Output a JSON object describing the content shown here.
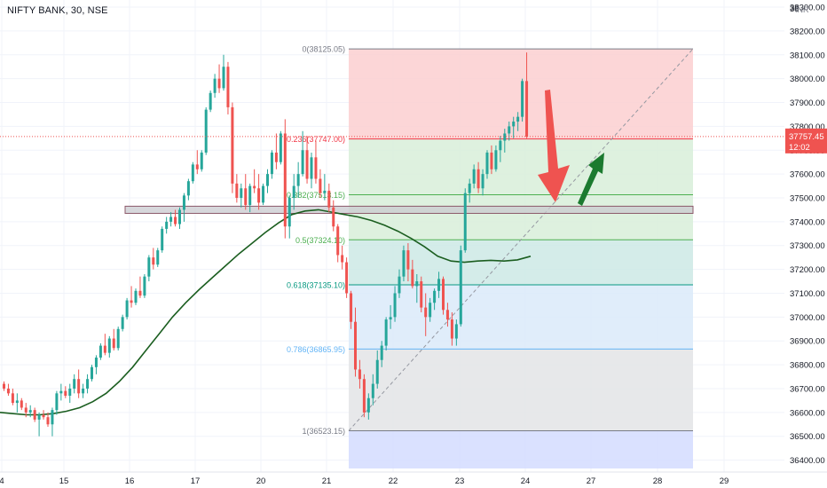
{
  "header": {
    "symbol_label": "NIFTY BANK, 30, NSE",
    "currency": "INR"
  },
  "chart_data": {
    "type": "candlestick",
    "title": "NIFTY BANK, 30, NSE",
    "x_ticks": [
      "4",
      "15",
      "16",
      "17",
      "20",
      "21",
      "22",
      "23",
      "24",
      "27",
      "28",
      "29"
    ],
    "y_ticks": [
      "36400.00",
      "36500.00",
      "36600.00",
      "36700.00",
      "36800.00",
      "36900.00",
      "37000.00",
      "37100.00",
      "37200.00",
      "37300.00",
      "37400.00",
      "37500.00",
      "37600.00",
      "37700.00",
      "37800.00",
      "37900.00",
      "38000.00",
      "38100.00",
      "38200.00",
      "38300.00"
    ],
    "y_top_cut_label": "38",
    "ylim": [
      36350,
      38330
    ],
    "last_price": {
      "value": 37757.45,
      "label": "37757.45",
      "countdown": "12:02",
      "color": "#ef5350"
    },
    "colors": {
      "up": "#26a69a",
      "down": "#ef5350",
      "ma": "#1b5e20",
      "arrow_down": "#ef5350",
      "arrow_up": "#1b7a2f"
    },
    "fibonacci": [
      {
        "level": "0",
        "price": 38125.05,
        "label": "0(38125.05)",
        "color": "#787b86",
        "fill": "#fccfd0"
      },
      {
        "level": "0.236",
        "price": 37747.0,
        "label": "0.236(37747.00)",
        "color": "#f23645",
        "fill": "#d8eed9"
      },
      {
        "level": "0.382",
        "price": 37513.15,
        "label": "0.382(37513.15)",
        "color": "#4caf50",
        "fill": "#d8eed9"
      },
      {
        "level": "0.5",
        "price": 37324.1,
        "label": "0.5(37324.10)",
        "color": "#4caf50",
        "fill": "#cce9e5"
      },
      {
        "level": "0.618",
        "price": 37135.1,
        "label": "0.618(37135.10)",
        "color": "#089981",
        "fill": "#dbeaf9"
      },
      {
        "level": "0.786",
        "price": 36865.95,
        "label": "0.786(36865.95)",
        "color": "#64b5f6",
        "fill": "#e3e4e6"
      },
      {
        "level": "1",
        "price": 36523.15,
        "label": "1(36523.15)",
        "color": "#787b86",
        "fill": "#d3dcff"
      }
    ],
    "zone": {
      "low": 37435,
      "high": 37465
    },
    "candles": [
      [
        36720,
        36730,
        36690,
        36700
      ],
      [
        36700,
        36720,
        36670,
        36680
      ],
      [
        36680,
        36700,
        36630,
        36640
      ],
      [
        36640,
        36680,
        36600,
        36650
      ],
      [
        36650,
        36660,
        36610,
        36620
      ],
      [
        36620,
        36640,
        36580,
        36600
      ],
      [
        36600,
        36630,
        36580,
        36610
      ],
      [
        36610,
        36620,
        36560,
        36570
      ],
      [
        36570,
        36600,
        36500,
        36590
      ],
      [
        36590,
        36610,
        36570,
        36580
      ],
      [
        36580,
        36600,
        36540,
        36550
      ],
      [
        36550,
        36620,
        36500,
        36610
      ],
      [
        36610,
        36690,
        36590,
        36680
      ],
      [
        36680,
        36720,
        36650,
        36690
      ],
      [
        36690,
        36710,
        36660,
        36670
      ],
      [
        36670,
        36720,
        36640,
        36700
      ],
      [
        36700,
        36760,
        36680,
        36740
      ],
      [
        36740,
        36780,
        36660,
        36680
      ],
      [
        36680,
        36720,
        36660,
        36700
      ],
      [
        36700,
        36760,
        36680,
        36740
      ],
      [
        36740,
        36800,
        36730,
        36790
      ],
      [
        36790,
        36840,
        36760,
        36830
      ],
      [
        36830,
        36890,
        36820,
        36880
      ],
      [
        36880,
        36930,
        36840,
        36850
      ],
      [
        36850,
        36920,
        36830,
        36910
      ],
      [
        36910,
        36950,
        36860,
        36870
      ],
      [
        36870,
        36960,
        36860,
        36950
      ],
      [
        36950,
        37010,
        36940,
        37000
      ],
      [
        37000,
        37080,
        36990,
        37070
      ],
      [
        37070,
        37130,
        37040,
        37060
      ],
      [
        37060,
        37120,
        37050,
        37110
      ],
      [
        37110,
        37170,
        37080,
        37090
      ],
      [
        37090,
        37180,
        37080,
        37170
      ],
      [
        37170,
        37260,
        37150,
        37250
      ],
      [
        37250,
        37290,
        37200,
        37220
      ],
      [
        37220,
        37290,
        37210,
        37280
      ],
      [
        37280,
        37380,
        37270,
        37370
      ],
      [
        37370,
        37420,
        37350,
        37400
      ],
      [
        37400,
        37440,
        37380,
        37420
      ],
      [
        37420,
        37450,
        37380,
        37390
      ],
      [
        37390,
        37460,
        37370,
        37450
      ],
      [
        37450,
        37520,
        37400,
        37510
      ],
      [
        37510,
        37580,
        37490,
        37570
      ],
      [
        37570,
        37650,
        37560,
        37640
      ],
      [
        37640,
        37700,
        37600,
        37620
      ],
      [
        37620,
        37700,
        37610,
        37690
      ],
      [
        37690,
        37880,
        37680,
        37870
      ],
      [
        37870,
        37950,
        37860,
        37940
      ],
      [
        37940,
        38020,
        37920,
        38000
      ],
      [
        38000,
        38060,
        37940,
        37960
      ],
      [
        37960,
        38100,
        37950,
        38050
      ],
      [
        38050,
        38070,
        37850,
        37880
      ],
      [
        37880,
        37900,
        37520,
        37560
      ],
      [
        37560,
        37600,
        37480,
        37500
      ],
      [
        37500,
        37560,
        37460,
        37540
      ],
      [
        37540,
        37600,
        37450,
        37470
      ],
      [
        37470,
        37560,
        37440,
        37550
      ],
      [
        37550,
        37620,
        37520,
        37540
      ],
      [
        37540,
        37600,
        37450,
        37480
      ],
      [
        37480,
        37560,
        37470,
        37550
      ],
      [
        37550,
        37620,
        37520,
        37600
      ],
      [
        37600,
        37700,
        37580,
        37690
      ],
      [
        37690,
        37770,
        37620,
        37650
      ],
      [
        37650,
        37780,
        37640,
        37770
      ],
      [
        37770,
        37830,
        37330,
        37380
      ],
      [
        37380,
        37510,
        37330,
        37500
      ],
      [
        37500,
        37600,
        37450,
        37550
      ],
      [
        37550,
        37650,
        37500,
        37600
      ],
      [
        37600,
        37780,
        37590,
        37700
      ],
      [
        37700,
        37760,
        37560,
        37580
      ],
      [
        37580,
        37690,
        37540,
        37670
      ],
      [
        37670,
        37740,
        37560,
        37580
      ],
      [
        37580,
        37620,
        37500,
        37520
      ],
      [
        37520,
        37600,
        37490,
        37530
      ],
      [
        37530,
        37560,
        37440,
        37460
      ],
      [
        37460,
        37490,
        37360,
        37380
      ],
      [
        37380,
        37390,
        37230,
        37260
      ],
      [
        37260,
        37300,
        37200,
        37230
      ],
      [
        37230,
        37250,
        37080,
        37100
      ],
      [
        37100,
        37110,
        36950,
        36980
      ],
      [
        36980,
        37040,
        36750,
        36780
      ],
      [
        36780,
        36820,
        36700,
        36740
      ],
      [
        36740,
        36760,
        36580,
        36600
      ],
      [
        36600,
        36680,
        36570,
        36660
      ],
      [
        36660,
        36760,
        36630,
        36720
      ],
      [
        36720,
        36860,
        36700,
        36820
      ],
      [
        36820,
        36900,
        36790,
        36880
      ],
      [
        36880,
        37000,
        36860,
        36990
      ],
      [
        36990,
        37050,
        36950,
        37000
      ],
      [
        37000,
        37130,
        36980,
        37100
      ],
      [
        37100,
        37200,
        37080,
        37170
      ],
      [
        37170,
        37300,
        37150,
        37280
      ],
      [
        37280,
        37310,
        37150,
        37200
      ],
      [
        37200,
        37240,
        37120,
        37130
      ],
      [
        37130,
        37180,
        37060,
        37150
      ],
      [
        37150,
        37170,
        37020,
        37040
      ],
      [
        37040,
        37100,
        36920,
        37000
      ],
      [
        37000,
        37080,
        36980,
        37060
      ],
      [
        37060,
        37120,
        37030,
        37110
      ],
      [
        37110,
        37190,
        37080,
        37160
      ],
      [
        37160,
        37170,
        37010,
        37030
      ],
      [
        37030,
        37060,
        36960,
        36990
      ],
      [
        36990,
        37020,
        36880,
        36910
      ],
      [
        36910,
        36990,
        36880,
        36970
      ],
      [
        36970,
        37300,
        36960,
        37280
      ],
      [
        37280,
        37540,
        37270,
        37520
      ],
      [
        37520,
        37580,
        37480,
        37560
      ],
      [
        37560,
        37640,
        37540,
        37620
      ],
      [
        37620,
        37650,
        37520,
        37540
      ],
      [
        37540,
        37620,
        37510,
        37600
      ],
      [
        37600,
        37700,
        37580,
        37690
      ],
      [
        37690,
        37720,
        37600,
        37620
      ],
      [
        37620,
        37720,
        37610,
        37700
      ],
      [
        37700,
        37760,
        37650,
        37740
      ],
      [
        37740,
        37790,
        37690,
        37770
      ],
      [
        37770,
        37820,
        37740,
        37800
      ],
      [
        37800,
        37840,
        37750,
        37820
      ],
      [
        37820,
        37860,
        37780,
        37840
      ],
      [
        37840,
        38000,
        37820,
        37990
      ],
      [
        37990,
        38110,
        37750,
        37757
      ]
    ],
    "ma_values": [
      36600,
      36595,
      36590,
      36590,
      36595,
      36605,
      36620,
      36645,
      36680,
      36730,
      36790,
      36860,
      36930,
      37000,
      37060,
      37115,
      37165,
      37215,
      37265,
      37310,
      37355,
      37395,
      37430,
      37445,
      37450,
      37440,
      37430,
      37420,
      37405,
      37385,
      37360,
      37330,
      37295,
      37255,
      37235,
      37230,
      37235,
      37238,
      37235,
      37240,
      37255
    ],
    "annotations": [
      "down-arrow",
      "up-arrow"
    ]
  }
}
